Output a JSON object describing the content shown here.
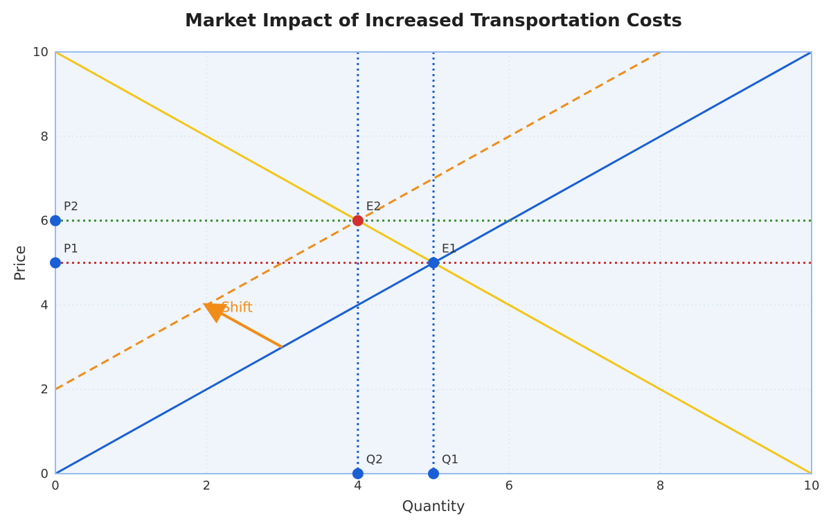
{
  "chart_data": {
    "type": "line",
    "title": "Market Impact of Increased Transportation Costs",
    "xlabel": "Quantity",
    "ylabel": "Price",
    "xlim": [
      0,
      10
    ],
    "ylim": [
      0,
      10
    ],
    "x_ticks": [
      "0",
      "2",
      "4",
      "6",
      "8",
      "10"
    ],
    "y_ticks": [
      "0",
      "2",
      "4",
      "6",
      "8",
      "10"
    ],
    "grid": true,
    "series": [
      {
        "key": "demand",
        "x": [
          0,
          10
        ],
        "y": [
          10,
          0
        ],
        "color": "#f5c518",
        "style": "solid"
      },
      {
        "key": "supply_original",
        "x": [
          0,
          10
        ],
        "y": [
          0,
          10
        ],
        "color": "#1a5fd6",
        "style": "solid"
      },
      {
        "key": "supply_shifted",
        "x": [
          0,
          8
        ],
        "y": [
          2,
          10
        ],
        "color": "#f28c18",
        "style": "dashed"
      }
    ],
    "reference_lines": [
      {
        "key": "q1-line",
        "orientation": "vertical",
        "value": 5,
        "color": "#1a5fd6"
      },
      {
        "key": "q2-line",
        "orientation": "vertical",
        "value": 4,
        "color": "#1a5fd6"
      },
      {
        "key": "p1-line",
        "orientation": "horizontal",
        "value": 5,
        "color": "#d32f2f"
      },
      {
        "key": "p2-line",
        "orientation": "horizontal",
        "value": 6,
        "color": "#3c8f2f"
      }
    ],
    "points": [
      {
        "key": "e1",
        "label": "E1",
        "x": 5,
        "y": 5,
        "color": "#1a5fd6"
      },
      {
        "key": "e2",
        "label": "E2",
        "x": 4,
        "y": 6,
        "color": "#d32f2f"
      },
      {
        "key": "p1",
        "label": "P1",
        "x": 0,
        "y": 5,
        "color": "#1a5fd6"
      },
      {
        "key": "p2",
        "label": "P2",
        "x": 0,
        "y": 6,
        "color": "#1a5fd6"
      },
      {
        "key": "q1",
        "label": "Q1",
        "x": 5,
        "y": 0,
        "color": "#1a5fd6"
      },
      {
        "key": "q2",
        "label": "Q2",
        "x": 4,
        "y": 0,
        "color": "#1a5fd6"
      }
    ],
    "annotations": [
      {
        "key": "shift",
        "text": "Shift",
        "from": [
          3,
          3
        ],
        "to": [
          2,
          4
        ],
        "text_at": [
          2.4,
          3.95
        ],
        "color": "#f28c18"
      }
    ],
    "colors": {
      "plot_background": "#eff5fb",
      "plot_border": "#99bbf0",
      "grid": "#d6dde7"
    }
  }
}
